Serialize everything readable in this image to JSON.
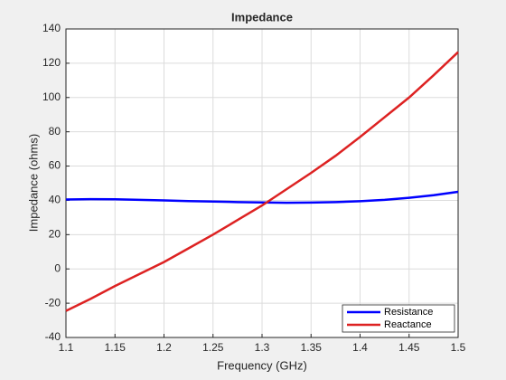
{
  "chart_data": {
    "type": "line",
    "title": "Impedance",
    "xlabel": "Frequency (GHz)",
    "ylabel": "Impedance (ohms)",
    "x": [
      1.1,
      1.125,
      1.15,
      1.175,
      1.2,
      1.225,
      1.25,
      1.275,
      1.3,
      1.325,
      1.35,
      1.375,
      1.4,
      1.425,
      1.45,
      1.475,
      1.5
    ],
    "series": [
      {
        "name": "Resistance",
        "color": "#0000ff",
        "values": [
          40.5,
          40.7,
          40.6,
          40.3,
          40,
          39.6,
          39.3,
          39,
          38.8,
          38.6,
          38.7,
          39,
          39.5,
          40.3,
          41.5,
          43,
          45
        ]
      },
      {
        "name": "Reactance",
        "color": "#dd2222",
        "values": [
          -24.5,
          -17.5,
          -10,
          -3,
          4,
          12,
          20,
          28.5,
          37,
          46.5,
          56,
          66,
          77,
          88.5,
          100,
          113,
          126.5
        ]
      }
    ],
    "xlim": [
      1.1,
      1.5
    ],
    "xticks": [
      1.1,
      1.15,
      1.2,
      1.25,
      1.3,
      1.35,
      1.4,
      1.45,
      1.5
    ],
    "ylim": [
      -40,
      140
    ],
    "yticks": [
      -40,
      -20,
      0,
      20,
      40,
      60,
      80,
      100,
      120,
      140
    ],
    "grid": true,
    "legend": "lower right"
  }
}
